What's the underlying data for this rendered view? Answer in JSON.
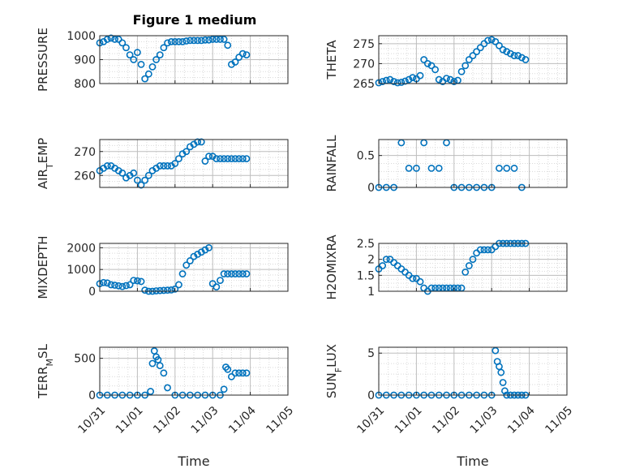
{
  "figure": {
    "title": "Figure 1 medium",
    "xlabel": "Time",
    "xticklabels": [
      "10/31",
      "11/01",
      "11/02",
      "11/03",
      "11/04",
      "11/05"
    ]
  },
  "chart_data": [
    {
      "type": "scatter",
      "title": "Figure 1 medium",
      "ylabel": "PRESSURE",
      "ylim": [
        800,
        1000
      ],
      "yticks": [
        800,
        900,
        1000
      ],
      "grid": true,
      "marker_color": "#0072BD",
      "x": [
        0.0,
        0.1,
        0.2,
        0.3,
        0.4,
        0.5,
        0.6,
        0.7,
        0.8,
        0.9,
        1.0,
        1.1,
        1.2,
        1.3,
        1.4,
        1.5,
        1.6,
        1.7,
        1.8,
        1.9,
        2.0,
        2.1,
        2.2,
        2.3,
        2.4,
        2.5,
        2.6,
        2.7,
        2.8,
        2.9,
        3.0,
        3.1,
        3.2,
        3.3,
        3.4,
        3.5,
        3.6,
        3.7,
        3.8,
        3.9
      ],
      "y": [
        970,
        975,
        985,
        990,
        985,
        985,
        970,
        950,
        920,
        900,
        930,
        880,
        820,
        840,
        870,
        900,
        920,
        950,
        970,
        975,
        975,
        975,
        975,
        978,
        980,
        980,
        980,
        980,
        982,
        982,
        985,
        985,
        985,
        985,
        960,
        880,
        890,
        910,
        925,
        920
      ]
    },
    {
      "type": "scatter",
      "ylabel": "THETA",
      "ylim": [
        265,
        277
      ],
      "yticks": [
        265,
        270,
        275
      ],
      "grid": true,
      "marker_color": "#0072BD",
      "x": [
        0.0,
        0.1,
        0.2,
        0.3,
        0.4,
        0.5,
        0.6,
        0.7,
        0.8,
        0.9,
        1.0,
        1.1,
        1.2,
        1.3,
        1.4,
        1.5,
        1.6,
        1.7,
        1.8,
        1.9,
        2.0,
        2.1,
        2.2,
        2.3,
        2.4,
        2.5,
        2.6,
        2.7,
        2.8,
        2.9,
        3.0,
        3.1,
        3.2,
        3.3,
        3.4,
        3.5,
        3.6,
        3.7,
        3.8,
        3.9
      ],
      "y": [
        265.2,
        265.5,
        265.8,
        266.0,
        265.5,
        265.2,
        265.3,
        265.6,
        266.0,
        266.5,
        266.2,
        267.0,
        271.0,
        270.0,
        269.5,
        268.5,
        266.0,
        265.5,
        266.3,
        266.0,
        265.5,
        265.8,
        268.0,
        269.5,
        271.0,
        272.0,
        273.0,
        274.0,
        275.0,
        275.8,
        276.0,
        275.5,
        274.5,
        273.5,
        273.0,
        272.5,
        272.0,
        272.0,
        271.5,
        271.0
      ]
    },
    {
      "type": "scatter",
      "ylabel": "AIR_TEMP",
      "ylim": [
        255,
        275
      ],
      "yticks": [
        260,
        270
      ],
      "grid": true,
      "marker_color": "#0072BD",
      "x": [
        0.0,
        0.1,
        0.2,
        0.3,
        0.4,
        0.5,
        0.6,
        0.7,
        0.8,
        0.9,
        1.0,
        1.1,
        1.2,
        1.3,
        1.4,
        1.5,
        1.6,
        1.7,
        1.8,
        1.9,
        2.0,
        2.1,
        2.2,
        2.3,
        2.4,
        2.5,
        2.6,
        2.7,
        2.8,
        2.9,
        3.0,
        3.1,
        3.2,
        3.3,
        3.4,
        3.5,
        3.6,
        3.7,
        3.8,
        3.9
      ],
      "y": [
        262,
        263,
        264,
        264,
        263,
        262,
        261,
        259,
        260,
        261,
        258,
        256,
        258,
        260,
        262,
        263,
        264,
        264,
        264,
        264,
        265,
        267,
        269,
        270,
        272,
        273,
        274,
        274,
        266,
        268,
        268,
        267,
        267,
        267,
        267,
        267,
        267,
        267,
        267,
        267
      ]
    },
    {
      "type": "scatter",
      "ylabel": "RAINFALL",
      "ylim": [
        0,
        0.75
      ],
      "yticks": [
        0,
        0.5
      ],
      "grid": true,
      "marker_color": "#0072BD",
      "x": [
        0.0,
        0.2,
        0.4,
        0.6,
        0.8,
        1.0,
        1.2,
        1.4,
        1.6,
        1.8,
        2.0,
        2.2,
        2.4,
        2.6,
        2.8,
        3.0,
        3.2,
        3.4,
        3.6,
        3.8
      ],
      "y": [
        0,
        0,
        0,
        0.7,
        0.3,
        0.3,
        0.7,
        0.3,
        0.3,
        0.7,
        0,
        0,
        0,
        0,
        0,
        0,
        0.3,
        0.3,
        0.3,
        0
      ]
    },
    {
      "type": "scatter",
      "ylabel": "MIXDEPTH",
      "ylim": [
        0,
        2200
      ],
      "yticks": [
        0,
        1000,
        2000
      ],
      "grid": true,
      "marker_color": "#0072BD",
      "x": [
        0.0,
        0.1,
        0.2,
        0.3,
        0.4,
        0.5,
        0.6,
        0.7,
        0.8,
        0.9,
        1.0,
        1.1,
        1.2,
        1.3,
        1.4,
        1.5,
        1.6,
        1.7,
        1.8,
        1.9,
        2.0,
        2.1,
        2.2,
        2.3,
        2.4,
        2.5,
        2.6,
        2.7,
        2.8,
        2.9,
        3.0,
        3.1,
        3.2,
        3.3,
        3.4,
        3.5,
        3.6,
        3.7,
        3.8,
        3.9
      ],
      "y": [
        350,
        400,
        380,
        300,
        280,
        250,
        220,
        260,
        300,
        500,
        480,
        450,
        50,
        0,
        0,
        20,
        30,
        40,
        50,
        60,
        100,
        300,
        800,
        1200,
        1400,
        1600,
        1700,
        1800,
        1900,
        2000,
        350,
        200,
        500,
        800,
        800,
        800,
        800,
        800,
        800,
        800
      ]
    },
    {
      "type": "scatter",
      "ylabel": "H2OMIXRA",
      "ylim": [
        1,
        2.5
      ],
      "yticks": [
        1,
        1.5,
        2,
        2.5
      ],
      "grid": true,
      "marker_color": "#0072BD",
      "x": [
        0.0,
        0.1,
        0.2,
        0.3,
        0.4,
        0.5,
        0.6,
        0.7,
        0.8,
        0.9,
        1.0,
        1.1,
        1.2,
        1.3,
        1.4,
        1.5,
        1.6,
        1.7,
        1.8,
        1.9,
        2.0,
        2.1,
        2.2,
        2.3,
        2.4,
        2.5,
        2.6,
        2.7,
        2.8,
        2.9,
        3.0,
        3.1,
        3.2,
        3.3,
        3.4,
        3.5,
        3.6,
        3.7,
        3.8,
        3.9
      ],
      "y": [
        1.7,
        1.8,
        2.0,
        2.0,
        1.9,
        1.8,
        1.7,
        1.6,
        1.5,
        1.4,
        1.4,
        1.3,
        1.1,
        1.0,
        1.1,
        1.1,
        1.1,
        1.1,
        1.1,
        1.1,
        1.1,
        1.1,
        1.1,
        1.6,
        1.8,
        2.0,
        2.2,
        2.3,
        2.3,
        2.3,
        2.3,
        2.4,
        2.5,
        2.5,
        2.5,
        2.5,
        2.5,
        2.5,
        2.5,
        2.5
      ]
    },
    {
      "type": "scatter",
      "ylabel": "TERR_MSL",
      "ylim": [
        0,
        650
      ],
      "yticks": [
        0,
        500
      ],
      "grid": true,
      "marker_color": "#0072BD",
      "x": [
        0.0,
        0.2,
        0.4,
        0.6,
        0.8,
        1.0,
        1.2,
        1.35,
        1.4,
        1.45,
        1.5,
        1.55,
        1.6,
        1.7,
        1.8,
        2.0,
        2.2,
        2.4,
        2.6,
        2.8,
        3.0,
        3.2,
        3.3,
        3.35,
        3.4,
        3.5,
        3.6,
        3.7,
        3.8,
        3.9
      ],
      "y": [
        0,
        0,
        0,
        0,
        0,
        0,
        0,
        50,
        430,
        600,
        520,
        480,
        400,
        300,
        100,
        0,
        0,
        0,
        0,
        0,
        0,
        0,
        80,
        380,
        350,
        250,
        300,
        300,
        300,
        300
      ]
    },
    {
      "type": "scatter",
      "ylabel": "SUN_FLUX",
      "ylim": [
        0,
        5.7
      ],
      "yticks": [
        0,
        5
      ],
      "grid": true,
      "marker_color": "#0072BD",
      "x": [
        0.0,
        0.2,
        0.4,
        0.6,
        0.8,
        1.0,
        1.2,
        1.4,
        1.6,
        1.8,
        2.0,
        2.2,
        2.4,
        2.6,
        2.8,
        3.0,
        3.1,
        3.15,
        3.2,
        3.25,
        3.3,
        3.35,
        3.4,
        3.5,
        3.6,
        3.7,
        3.8,
        3.9
      ],
      "y": [
        0,
        0,
        0,
        0,
        0,
        0,
        0,
        0,
        0,
        0,
        0,
        0,
        0,
        0,
        0,
        0,
        5.3,
        4.0,
        3.4,
        2.7,
        1.5,
        0.5,
        0,
        0,
        0,
        0,
        0,
        0
      ]
    }
  ]
}
